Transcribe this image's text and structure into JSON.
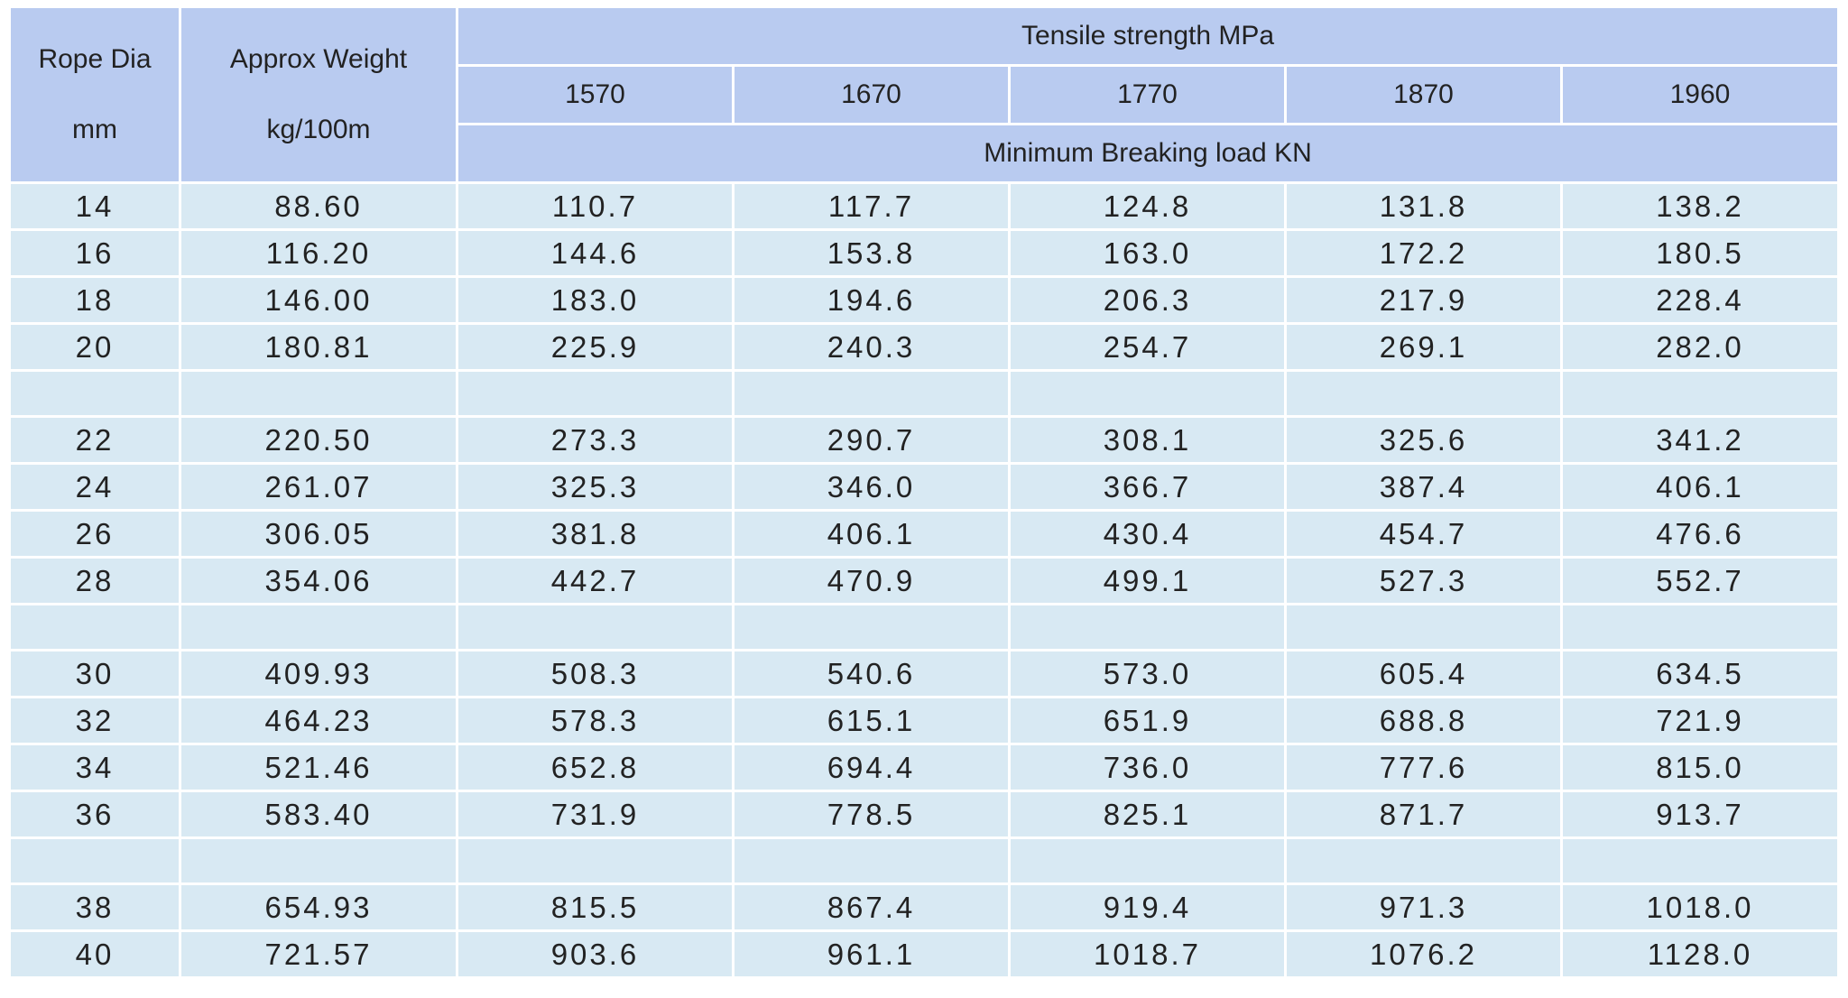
{
  "header": {
    "rope_dia_line1": "Rope Dia",
    "rope_dia_line2": "mm",
    "weight_line1": "Approx Weight",
    "weight_line2": "kg/100m",
    "tensile_title": "Tensile strength MPa",
    "grades": [
      "1570",
      "1670",
      "1770",
      "1870",
      "1960"
    ],
    "breaking_title": "Minimum Breaking load KN"
  },
  "groups": [
    [
      [
        "14",
        "88.60",
        "110.7",
        "117.7",
        "124.8",
        "131.8",
        "138.2"
      ],
      [
        "16",
        "116.20",
        "144.6",
        "153.8",
        "163.0",
        "172.2",
        "180.5"
      ],
      [
        "18",
        "146.00",
        "183.0",
        "194.6",
        "206.3",
        "217.9",
        "228.4"
      ],
      [
        "20",
        "180.81",
        "225.9",
        "240.3",
        "254.7",
        "269.1",
        "282.0"
      ]
    ],
    [
      [
        "22",
        "220.50",
        "273.3",
        "290.7",
        "308.1",
        "325.6",
        "341.2"
      ],
      [
        "24",
        "261.07",
        "325.3",
        "346.0",
        "366.7",
        "387.4",
        "406.1"
      ],
      [
        "26",
        "306.05",
        "381.8",
        "406.1",
        "430.4",
        "454.7",
        "476.6"
      ],
      [
        "28",
        "354.06",
        "442.7",
        "470.9",
        "499.1",
        "527.3",
        "552.7"
      ]
    ],
    [
      [
        "30",
        "409.93",
        "508.3",
        "540.6",
        "573.0",
        "605.4",
        "634.5"
      ],
      [
        "32",
        "464.23",
        "578.3",
        "615.1",
        "651.9",
        "688.8",
        "721.9"
      ],
      [
        "34",
        "521.46",
        "652.8",
        "694.4",
        "736.0",
        "777.6",
        "815.0"
      ],
      [
        "36",
        "583.40",
        "731.9",
        "778.5",
        "825.1",
        "871.7",
        "913.7"
      ]
    ],
    [
      [
        "38",
        "654.93",
        "815.5",
        "867.4",
        "919.4",
        "971.3",
        "1018.0"
      ],
      [
        "40",
        "721.57",
        "903.6",
        "961.1",
        "1018.7",
        "1076.2",
        "1128.0"
      ]
    ]
  ]
}
